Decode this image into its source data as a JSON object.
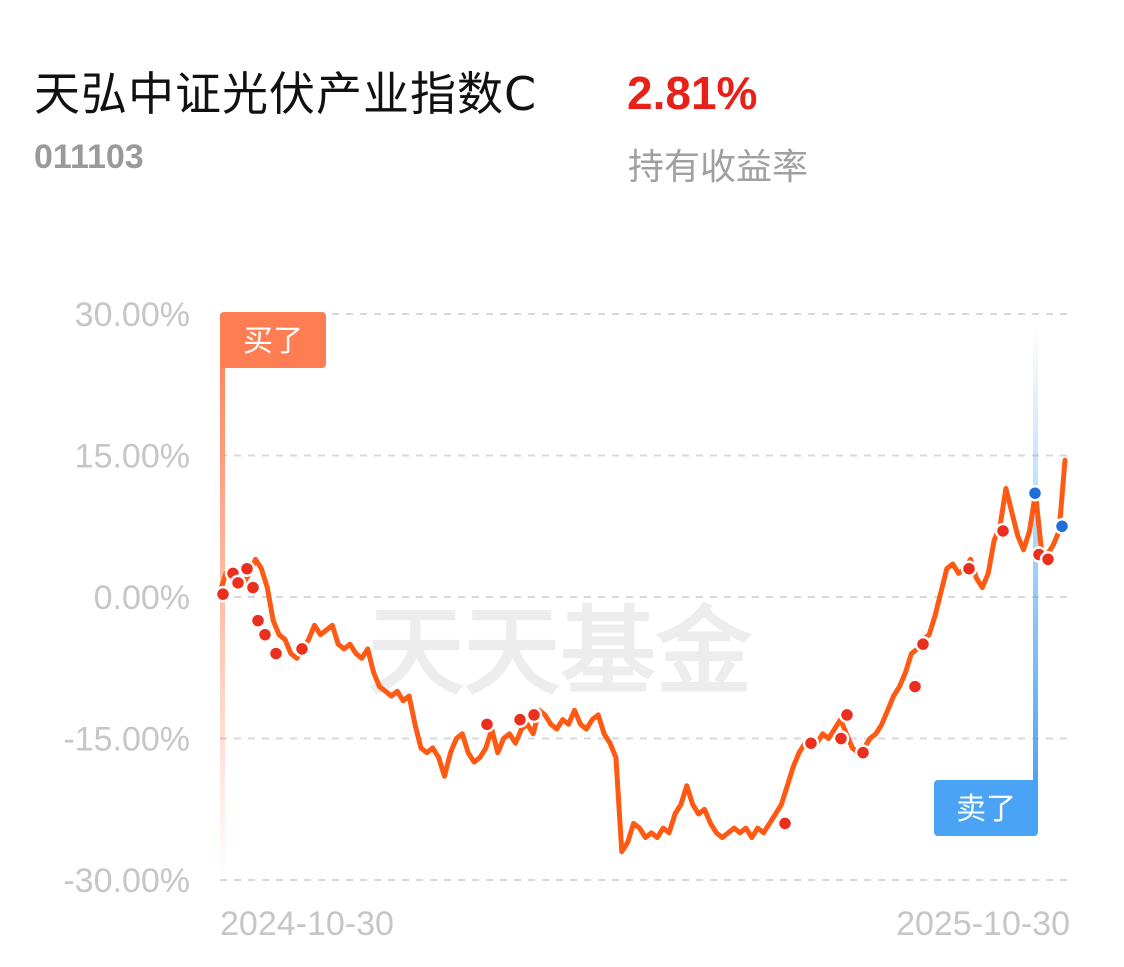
{
  "header": {
    "fund_name": "天弘中证光伏产业指数C",
    "fund_code": "011103",
    "holding_return": "2.81%",
    "holding_return_label": "持有收益率"
  },
  "colors": {
    "line": "#ff5a13",
    "buy": "#ff7d52",
    "sell": "#4aa3f5",
    "return_red": "#e8201a"
  },
  "watermark": "天天基金",
  "chart_data": {
    "type": "line",
    "title": "",
    "xlabel": "",
    "ylabel": "",
    "x_range": [
      "2024-10-30",
      "2025-10-30"
    ],
    "x_ticks": [
      "2024-10-30",
      "2025-10-30"
    ],
    "ylim": [
      -30,
      30
    ],
    "y_ticks": [
      "30.00%",
      "15.00%",
      "0.00%",
      "-15.00%",
      "-30.00%"
    ],
    "y_tick_values": [
      30,
      15,
      0,
      -15,
      -30
    ],
    "grid": true,
    "series": [
      {
        "values": [
          0.5,
          2.5,
          3.0,
          2.0,
          1.5,
          2.5,
          4.0,
          3.0,
          1.0,
          -2.5,
          -4.0,
          -4.5,
          -6.0,
          -6.5,
          -5.5,
          -4.5,
          -3.0,
          -4.0,
          -3.5,
          -3.0,
          -5.0,
          -5.5,
          -5.0,
          -6.0,
          -6.5,
          -5.5,
          -8.0,
          -9.5,
          -10.0,
          -10.5,
          -10.0,
          -11.0,
          -10.5,
          -13.5,
          -16.0,
          -16.5,
          -16.0,
          -17.0,
          -19.0,
          -16.5,
          -15.0,
          -14.5,
          -16.5,
          -17.5,
          -17.0,
          -16.0,
          -14.0,
          -16.5,
          -15.0,
          -14.5,
          -15.5,
          -14.0,
          -13.5,
          -14.5,
          -12.0,
          -12.5,
          -13.5,
          -14.0,
          -13.0,
          -13.5,
          -12.0,
          -13.5,
          -14.0,
          -13.0,
          -12.5,
          -14.5,
          -15.5,
          -17.0,
          -27.0,
          -26.0,
          -24.0,
          -24.5,
          -25.5,
          -25.0,
          -25.5,
          -24.5,
          -25.0,
          -23.0,
          -22.0,
          -20.0,
          -22.0,
          -23.0,
          -22.5,
          -24.0,
          -25.0,
          -25.5,
          -25.0,
          -24.5,
          -25.0,
          -24.5,
          -25.5,
          -24.5,
          -25.0,
          -24.0,
          -23.0,
          -22.0,
          -20.0,
          -18.0,
          -16.5,
          -15.5,
          -16.0,
          -15.5,
          -14.5,
          -15.0,
          -14.0,
          -13.0,
          -14.5,
          -16.0,
          -16.5,
          -16.0,
          -15.0,
          -14.5,
          -13.5,
          -12.0,
          -10.5,
          -9.5,
          -8.0,
          -6.0,
          -5.5,
          -4.5,
          -4.0,
          -2.0,
          0.5,
          3.0,
          3.5,
          2.5,
          3.0,
          4.0,
          2.0,
          1.0,
          2.5,
          6.0,
          7.5,
          11.5,
          9.0,
          6.5,
          5.0,
          7.0,
          11.0,
          5.0,
          4.5,
          5.5,
          7.0,
          14.5
        ]
      }
    ],
    "buy_points": [
      0.3,
      2.5,
      1.5,
      3.0,
      1.0,
      -2.5,
      -4.0,
      -6.0,
      -5.5,
      -13.5,
      -13.0,
      -12.5,
      -24.0,
      -15.5,
      -15.0,
      -12.5,
      -16.5,
      -9.5,
      -5.0,
      3.0,
      7.0,
      4.5,
      4.0
    ],
    "sell_points": [
      11.0,
      7.5
    ],
    "annotations": {
      "buy": "买了",
      "sell": "卖了"
    }
  }
}
